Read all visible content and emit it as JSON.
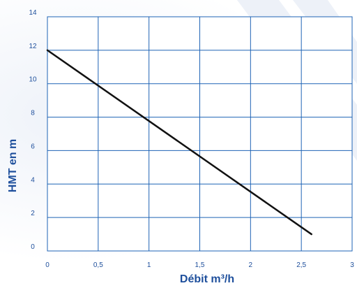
{
  "colors": {
    "grid": "#1e63b5",
    "text": "#1e4f9c",
    "series": "#111111",
    "background_tint": "#eef2f9"
  },
  "chart_data": {
    "type": "line",
    "title": "",
    "xlabel": "Débit m³/h",
    "ylabel": "HMT en m",
    "xlim": [
      0,
      3
    ],
    "ylim": [
      0,
      14
    ],
    "x_ticks": [
      "0",
      "0,5",
      "1",
      "1,5",
      "2",
      "2,5",
      "3"
    ],
    "y_ticks": [
      "0",
      "2",
      "4",
      "6",
      "8",
      "10",
      "12",
      "14"
    ],
    "grid": true,
    "legend": "none",
    "series": [
      {
        "x": [
          0,
          2.6
        ],
        "y": [
          12,
          1
        ]
      }
    ]
  }
}
